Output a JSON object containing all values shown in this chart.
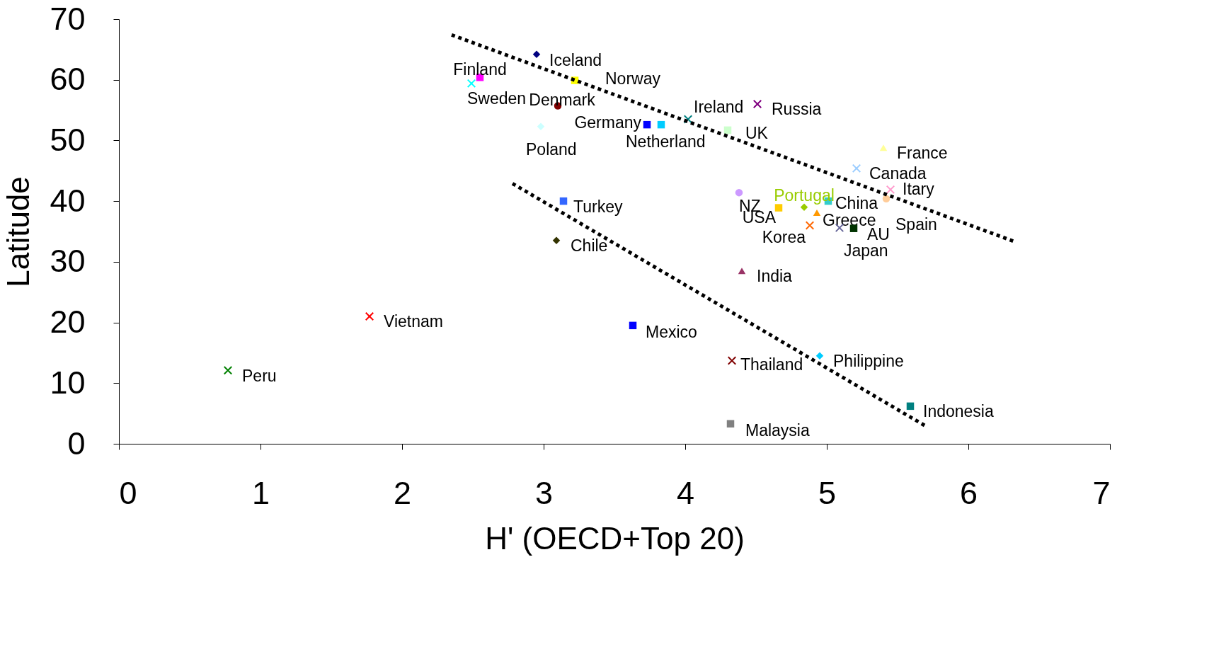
{
  "chart_data": {
    "type": "scatter",
    "xlabel": "H' (OECD+Top 20)",
    "ylabel": "Latitude",
    "xlim": [
      0,
      7
    ],
    "ylim": [
      0,
      70
    ],
    "xticks": [
      0,
      1,
      2,
      3,
      4,
      5,
      6,
      7
    ],
    "yticks": [
      0,
      10,
      20,
      30,
      40,
      50,
      60,
      70
    ],
    "grid": false,
    "series": [
      {
        "name": "Iceland",
        "color": "#000080",
        "marker": "diamond",
        "x": [
          2.95
        ],
        "values": [
          64.2
        ]
      },
      {
        "name": "Finland",
        "color": "#ff00ff",
        "marker": "square",
        "x": [
          2.55
        ],
        "values": [
          60.4
        ]
      },
      {
        "name": "Sweden",
        "color": "#00ffff",
        "marker": "cross",
        "x": [
          2.49
        ],
        "values": [
          59.4
        ]
      },
      {
        "name": "Norway",
        "color": "#ffff00",
        "marker": "square",
        "x": [
          3.22
        ],
        "values": [
          59.9
        ]
      },
      {
        "name": "Denmark",
        "color": "#800000",
        "marker": "circle",
        "x": [
          3.1
        ],
        "values": [
          55.7
        ]
      },
      {
        "name": "Poland",
        "color": "#ccffff",
        "marker": "diamond",
        "x": [
          2.98
        ],
        "values": [
          52.3
        ]
      },
      {
        "name": "Germany",
        "color": "#0000ff",
        "marker": "square",
        "x": [
          3.73
        ],
        "values": [
          52.6
        ]
      },
      {
        "name": "Netherland",
        "color": "#00ccff",
        "marker": "square",
        "x": [
          3.83
        ],
        "values": [
          52.6
        ]
      },
      {
        "name": "Ireland",
        "color": "#008080",
        "marker": "cross",
        "x": [
          4.02
        ],
        "values": [
          53.5
        ]
      },
      {
        "name": "UK",
        "color": "#ccffcc",
        "marker": "square",
        "x": [
          4.3
        ],
        "values": [
          51.7
        ]
      },
      {
        "name": "Russia",
        "color": "#800080",
        "marker": "cross",
        "x": [
          4.51
        ],
        "values": [
          56.0
        ]
      },
      {
        "name": "France",
        "color": "#ffff99",
        "marker": "triangle",
        "x": [
          5.4
        ],
        "values": [
          48.8
        ]
      },
      {
        "name": "Canada",
        "color": "#99ccff",
        "marker": "cross",
        "x": [
          5.21
        ],
        "values": [
          45.4
        ]
      },
      {
        "name": "Itary",
        "color": "#ff99cc",
        "marker": "cross",
        "x": [
          5.45
        ],
        "values": [
          41.9
        ]
      },
      {
        "name": "Spain",
        "color": "#ffcc99",
        "marker": "circle",
        "x": [
          5.42
        ],
        "values": [
          40.4
        ]
      },
      {
        "name": "China",
        "color": "#33cccc",
        "marker": "square",
        "x": [
          5.01
        ],
        "values": [
          40.0
        ]
      },
      {
        "name": "Portugal",
        "color": "#99cc00",
        "marker": "diamond",
        "x": [
          4.84
        ],
        "values": [
          39.0
        ]
      },
      {
        "name": "NZ",
        "color": "#cc99ff",
        "marker": "circle",
        "x": [
          4.38
        ],
        "values": [
          41.4
        ]
      },
      {
        "name": "USA",
        "color": "#ffcc00",
        "marker": "square",
        "x": [
          4.66
        ],
        "values": [
          38.9
        ]
      },
      {
        "name": "Greece",
        "color": "#ff9900",
        "marker": "triangle",
        "x": [
          4.93
        ],
        "values": [
          38.1
        ]
      },
      {
        "name": "Korea",
        "color": "#ff6600",
        "marker": "cross",
        "x": [
          4.88
        ],
        "values": [
          36.0
        ]
      },
      {
        "name": "Japan",
        "color": "#666699",
        "marker": "cross",
        "x": [
          5.09
        ],
        "values": [
          35.6
        ]
      },
      {
        "name": "AU",
        "color": "#003300",
        "marker": "square",
        "x": [
          5.19
        ],
        "values": [
          35.5
        ]
      },
      {
        "name": "Turkey",
        "color": "#3366ff",
        "marker": "square",
        "x": [
          3.14
        ],
        "values": [
          40.0
        ]
      },
      {
        "name": "Chile",
        "color": "#333300",
        "marker": "diamond",
        "x": [
          3.09
        ],
        "values": [
          33.5
        ]
      },
      {
        "name": "India",
        "color": "#993366",
        "marker": "triangle",
        "x": [
          4.4
        ],
        "values": [
          28.5
        ]
      },
      {
        "name": "Mexico",
        "color": "#0000ff",
        "marker": "square",
        "x": [
          3.63
        ],
        "values": [
          19.5
        ]
      },
      {
        "name": "Thailand",
        "color": "#800000",
        "marker": "cross",
        "x": [
          4.33
        ],
        "values": [
          13.7
        ]
      },
      {
        "name": "Philippine",
        "color": "#00ccff",
        "marker": "diamond",
        "x": [
          4.95
        ],
        "values": [
          14.5
        ]
      },
      {
        "name": "Indonesia",
        "color": "#008080",
        "marker": "square",
        "x": [
          5.59
        ],
        "values": [
          6.2
        ]
      },
      {
        "name": "Malaysia",
        "color": "#808080",
        "marker": "square",
        "x": [
          4.32
        ],
        "values": [
          3.3
        ]
      },
      {
        "name": "Vietnam",
        "color": "#ff0000",
        "marker": "cross",
        "x": [
          1.77
        ],
        "values": [
          21.0
        ]
      },
      {
        "name": "Peru",
        "color": "#008000",
        "marker": "cross",
        "x": [
          0.77
        ],
        "values": [
          12.1
        ]
      },
      {
        "type": "line",
        "color": "#000000",
        "marker": "none",
        "line_style": "dotted",
        "x": [
          2.35,
          6.33
        ],
        "values": [
          67.4,
          33.3
        ]
      },
      {
        "type": "line",
        "color": "#000000",
        "marker": "none",
        "line_style": "dotted",
        "x": [
          2.78,
          5.7
        ],
        "values": [
          42.9,
          2.9
        ]
      }
    ]
  }
}
